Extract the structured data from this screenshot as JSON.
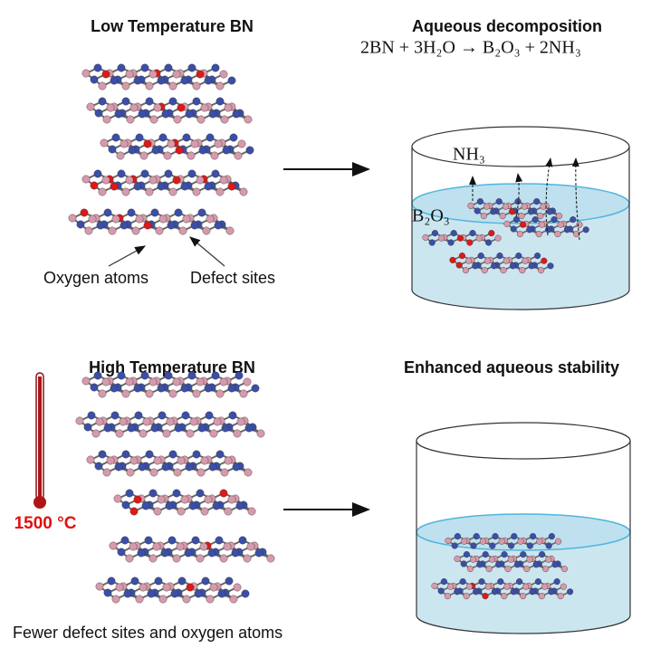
{
  "panels": {
    "low": {
      "title": "Low Temperature BN",
      "labels": [
        "Oxygen atoms",
        "Defect sites"
      ]
    },
    "decomposition": {
      "title": "Aqueous decomposition",
      "equation": "2BN + 3H₂O → B₂O₃ + 2NH₃",
      "species": [
        "NH₃",
        "B₂O₃"
      ]
    },
    "high": {
      "title": "High Temperature BN",
      "temperature": "1500 °C",
      "caption": "Fewer defect sites and oxygen atoms"
    },
    "stability": {
      "title": "Enhanced aqueous stability"
    }
  }
}
